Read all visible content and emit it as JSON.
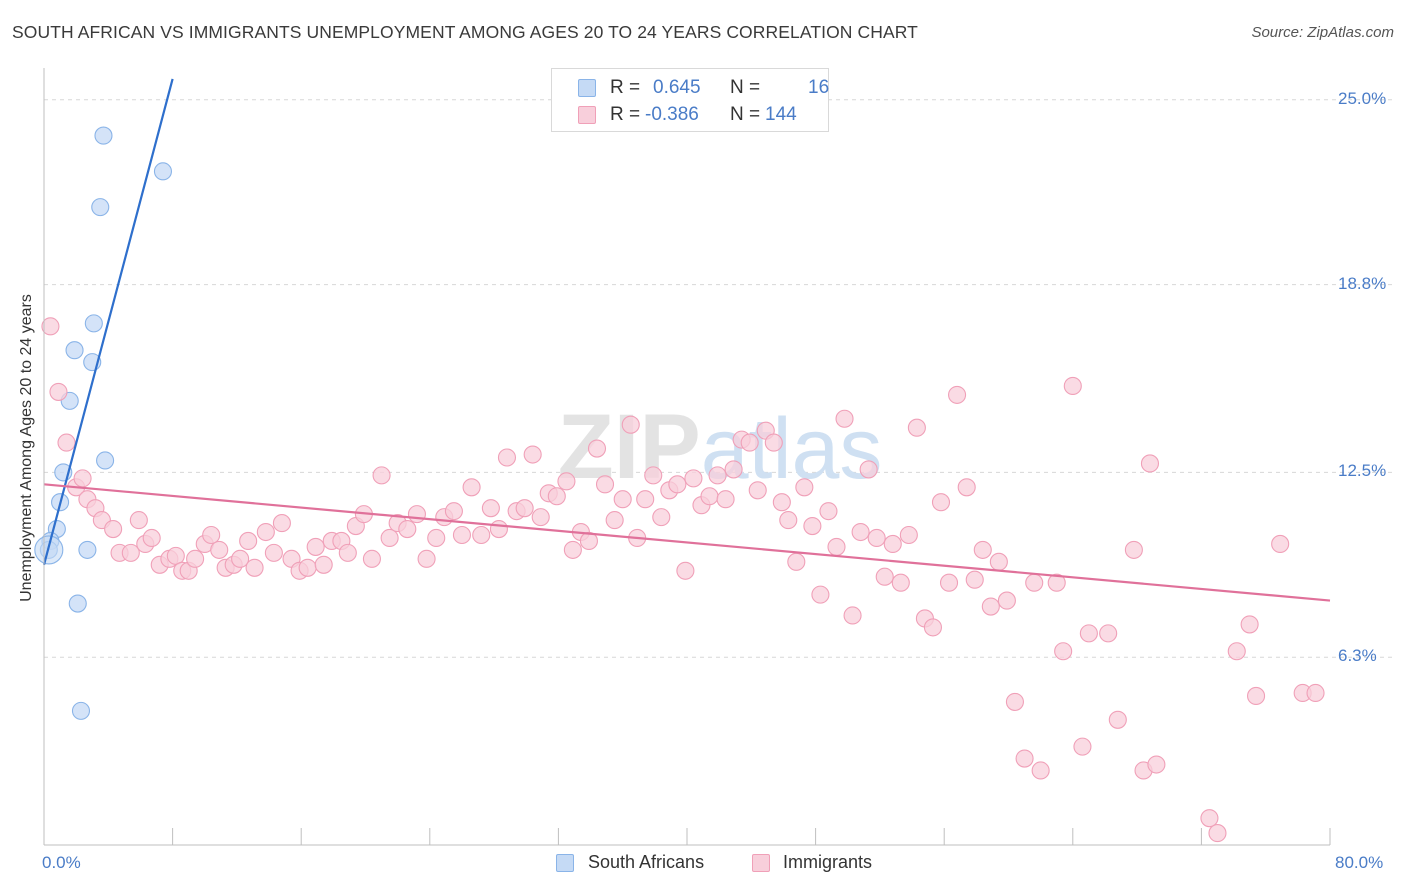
{
  "chart_data": {
    "type": "scatter",
    "title": "SOUTH AFRICAN VS IMMIGRANTS UNEMPLOYMENT AMONG AGES 20 TO 24 YEARS CORRELATION CHART",
    "source": "Source: ZipAtlas.com",
    "xlabel": "",
    "ylabel": "Unemployment Among Ages 20 to 24 years",
    "xlim": [
      0,
      80
    ],
    "ylim": [
      0,
      26
    ],
    "x_tick_labels": [
      "0.0%",
      "80.0%"
    ],
    "y_ticks": [
      {
        "value": 25.0,
        "label": "25.0%"
      },
      {
        "value": 18.8,
        "label": "18.8%"
      },
      {
        "value": 12.5,
        "label": "12.5%"
      },
      {
        "value": 6.3,
        "label": "6.3%"
      }
    ],
    "watermark": "ZIPatlas",
    "legend": {
      "r_label": "R =",
      "n_label": "N =",
      "entries": [
        {
          "name": "South Africans",
          "r": "0.645",
          "n": "16"
        },
        {
          "name": "Immigrants",
          "r": "-0.386",
          "n": "144"
        }
      ]
    },
    "series": [
      {
        "name": "South Africans",
        "color": "#8ab4e8",
        "fill": "#c5daf5",
        "line_color": "#2e6fcc",
        "trend": {
          "x0": 0.0,
          "y0": 9.4,
          "x1": 8.0,
          "y1": 25.7
        },
        "points": [
          [
            3.7,
            23.8
          ],
          [
            7.4,
            22.6
          ],
          [
            3.5,
            21.4
          ],
          [
            3.1,
            17.5
          ],
          [
            1.9,
            16.6
          ],
          [
            3.0,
            16.2
          ],
          [
            1.6,
            14.9
          ],
          [
            3.8,
            12.9
          ],
          [
            1.2,
            12.5
          ],
          [
            1.0,
            11.5
          ],
          [
            0.8,
            10.6
          ],
          [
            0.4,
            10.2
          ],
          [
            0.3,
            9.9
          ],
          [
            2.7,
            9.9
          ],
          [
            2.1,
            8.1
          ],
          [
            2.3,
            4.5
          ]
        ]
      },
      {
        "name": "Immigrants",
        "color": "#f0a0b8",
        "fill": "#f8cfdb",
        "line_color": "#e0719a",
        "trend": {
          "x0": 0.0,
          "y0": 12.1,
          "x1": 80.0,
          "y1": 8.2
        },
        "points": [
          [
            0.4,
            17.4
          ],
          [
            0.9,
            15.2
          ],
          [
            1.4,
            13.5
          ],
          [
            2.0,
            12.0
          ],
          [
            2.4,
            12.3
          ],
          [
            2.7,
            11.6
          ],
          [
            3.2,
            11.3
          ],
          [
            3.6,
            10.9
          ],
          [
            4.3,
            10.6
          ],
          [
            4.7,
            9.8
          ],
          [
            5.4,
            9.8
          ],
          [
            5.9,
            10.9
          ],
          [
            6.3,
            10.1
          ],
          [
            6.7,
            10.3
          ],
          [
            7.2,
            9.4
          ],
          [
            7.8,
            9.6
          ],
          [
            8.2,
            9.7
          ],
          [
            8.6,
            9.2
          ],
          [
            9.0,
            9.2
          ],
          [
            9.4,
            9.6
          ],
          [
            10.0,
            10.1
          ],
          [
            10.4,
            10.4
          ],
          [
            10.9,
            9.9
          ],
          [
            11.3,
            9.3
          ],
          [
            11.8,
            9.4
          ],
          [
            12.2,
            9.6
          ],
          [
            12.7,
            10.2
          ],
          [
            13.1,
            9.3
          ],
          [
            13.8,
            10.5
          ],
          [
            14.3,
            9.8
          ],
          [
            14.8,
            10.8
          ],
          [
            15.4,
            9.6
          ],
          [
            15.9,
            9.2
          ],
          [
            16.4,
            9.3
          ],
          [
            16.9,
            10.0
          ],
          [
            17.4,
            9.4
          ],
          [
            17.9,
            10.2
          ],
          [
            18.5,
            10.2
          ],
          [
            18.9,
            9.8
          ],
          [
            19.4,
            10.7
          ],
          [
            19.9,
            11.1
          ],
          [
            20.4,
            9.6
          ],
          [
            21.0,
            12.4
          ],
          [
            21.5,
            10.3
          ],
          [
            22.0,
            10.8
          ],
          [
            22.6,
            10.6
          ],
          [
            23.2,
            11.1
          ],
          [
            23.8,
            9.6
          ],
          [
            24.4,
            10.3
          ],
          [
            24.9,
            11.0
          ],
          [
            25.5,
            11.2
          ],
          [
            26.0,
            10.4
          ],
          [
            26.6,
            12.0
          ],
          [
            27.2,
            10.4
          ],
          [
            27.8,
            11.3
          ],
          [
            28.3,
            10.6
          ],
          [
            28.8,
            13.0
          ],
          [
            29.4,
            11.2
          ],
          [
            29.9,
            11.3
          ],
          [
            30.4,
            13.1
          ],
          [
            30.9,
            11.0
          ],
          [
            31.4,
            11.8
          ],
          [
            31.9,
            11.7
          ],
          [
            32.5,
            12.2
          ],
          [
            32.9,
            9.9
          ],
          [
            33.4,
            10.5
          ],
          [
            33.9,
            10.2
          ],
          [
            34.4,
            13.3
          ],
          [
            34.9,
            12.1
          ],
          [
            35.5,
            10.9
          ],
          [
            36.0,
            11.6
          ],
          [
            36.5,
            14.1
          ],
          [
            36.9,
            10.3
          ],
          [
            37.4,
            11.6
          ],
          [
            37.9,
            12.4
          ],
          [
            38.4,
            11.0
          ],
          [
            38.9,
            11.9
          ],
          [
            39.4,
            12.1
          ],
          [
            39.9,
            9.2
          ],
          [
            40.4,
            12.3
          ],
          [
            40.9,
            11.4
          ],
          [
            41.4,
            11.7
          ],
          [
            41.9,
            12.4
          ],
          [
            42.4,
            11.6
          ],
          [
            42.9,
            12.6
          ],
          [
            43.4,
            13.6
          ],
          [
            43.9,
            13.5
          ],
          [
            44.4,
            11.9
          ],
          [
            44.9,
            13.9
          ],
          [
            45.4,
            13.5
          ],
          [
            45.9,
            11.5
          ],
          [
            46.3,
            10.9
          ],
          [
            46.8,
            9.5
          ],
          [
            47.3,
            12.0
          ],
          [
            47.8,
            10.7
          ],
          [
            48.3,
            8.4
          ],
          [
            48.8,
            11.2
          ],
          [
            49.3,
            10.0
          ],
          [
            49.8,
            14.3
          ],
          [
            50.3,
            7.7
          ],
          [
            50.8,
            10.5
          ],
          [
            51.3,
            12.6
          ],
          [
            51.8,
            10.3
          ],
          [
            52.3,
            9.0
          ],
          [
            52.8,
            10.1
          ],
          [
            53.3,
            8.8
          ],
          [
            53.8,
            10.4
          ],
          [
            54.3,
            14.0
          ],
          [
            54.8,
            7.6
          ],
          [
            55.3,
            7.3
          ],
          [
            55.8,
            11.5
          ],
          [
            56.3,
            8.8
          ],
          [
            56.8,
            15.1
          ],
          [
            57.4,
            12.0
          ],
          [
            57.9,
            8.9
          ],
          [
            58.4,
            9.9
          ],
          [
            58.9,
            8.0
          ],
          [
            59.4,
            9.5
          ],
          [
            59.9,
            8.2
          ],
          [
            60.4,
            4.8
          ],
          [
            61.0,
            2.9
          ],
          [
            61.6,
            8.8
          ],
          [
            62.0,
            2.5
          ],
          [
            63.0,
            8.8
          ],
          [
            63.4,
            6.5
          ],
          [
            64.0,
            15.4
          ],
          [
            64.6,
            3.3
          ],
          [
            65.0,
            7.1
          ],
          [
            66.2,
            7.1
          ],
          [
            66.8,
            4.2
          ],
          [
            67.8,
            9.9
          ],
          [
            68.4,
            2.5
          ],
          [
            68.8,
            12.8
          ],
          [
            69.2,
            2.7
          ],
          [
            72.5,
            0.9
          ],
          [
            73.0,
            0.4
          ],
          [
            74.2,
            6.5
          ],
          [
            75.0,
            7.4
          ],
          [
            75.4,
            5.0
          ],
          [
            76.9,
            10.1
          ],
          [
            78.3,
            5.1
          ],
          [
            79.1,
            5.1
          ]
        ]
      }
    ]
  }
}
